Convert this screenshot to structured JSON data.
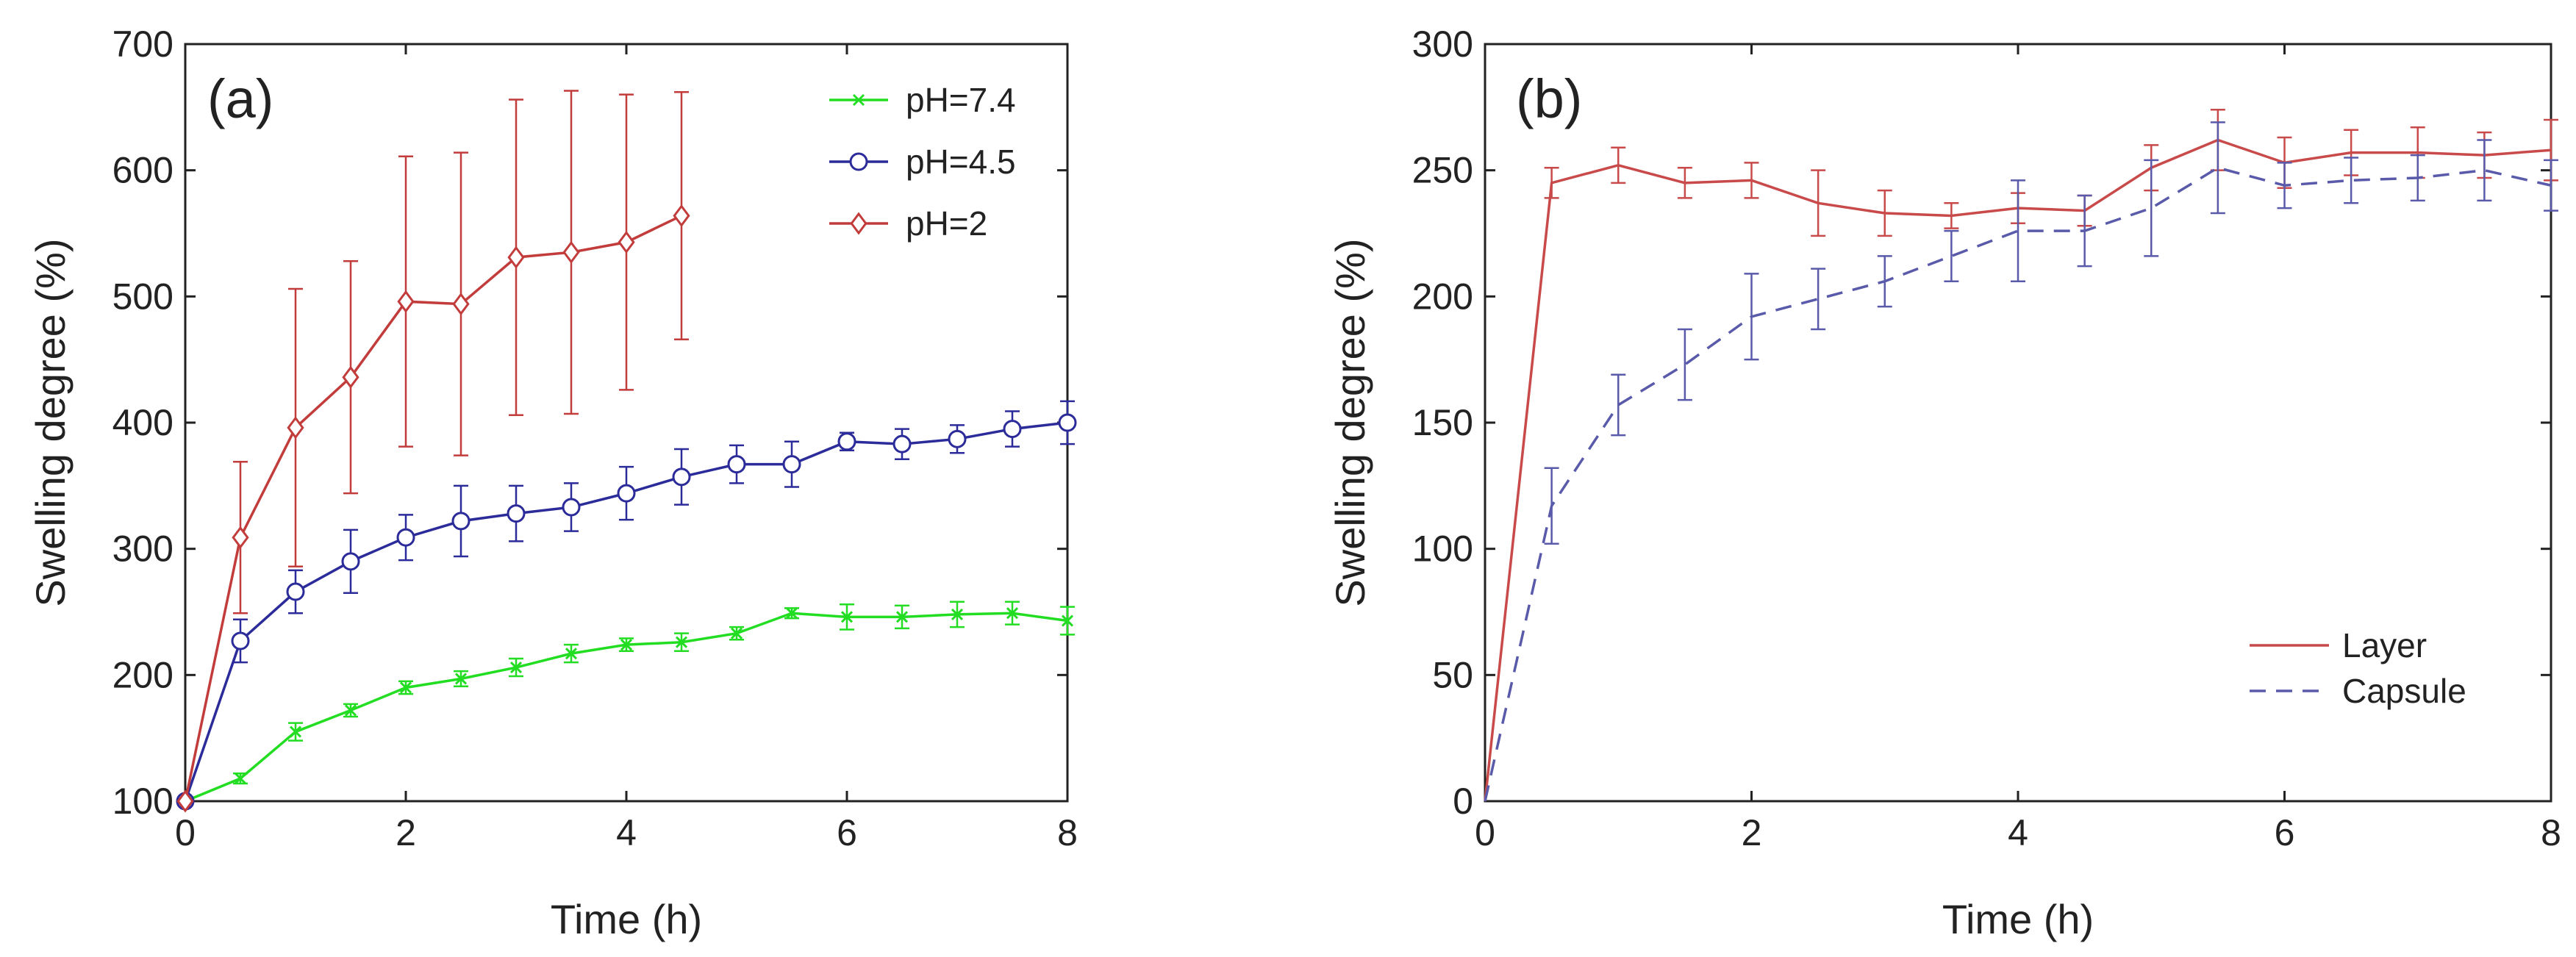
{
  "chart_data": [
    {
      "panel": "(a)",
      "type": "line",
      "xlabel": "Time (h)",
      "ylabel": "Swelling degree (%)",
      "xlim": [
        0,
        8
      ],
      "ylim": [
        100,
        700
      ],
      "xticks": [
        0,
        2,
        4,
        6,
        8
      ],
      "yticks": [
        100,
        200,
        300,
        400,
        500,
        600,
        700
      ],
      "grid": false,
      "legend_position": "top-right",
      "series": [
        {
          "name": "pH=7.4",
          "color": "#22dd22",
          "marker": "x",
          "dash": "solid",
          "x": [
            0,
            0.5,
            1,
            1.5,
            2,
            2.5,
            3,
            3.5,
            4,
            4.5,
            5,
            5.5,
            6,
            6.5,
            7,
            7.5,
            8
          ],
          "y": [
            100,
            118,
            155,
            172,
            190,
            197,
            206,
            217,
            224,
            226,
            233,
            249,
            246,
            246,
            248,
            249,
            243
          ],
          "err": [
            0,
            4,
            7,
            5,
            5,
            6,
            7,
            7,
            5,
            7,
            5,
            4,
            10,
            9,
            10,
            9,
            11
          ]
        },
        {
          "name": "pH=4.5",
          "color": "#2b2b9a",
          "marker": "circle",
          "dash": "solid",
          "x": [
            0,
            0.5,
            1,
            1.5,
            2,
            2.5,
            3,
            3.5,
            4,
            4.5,
            5,
            5.5,
            6,
            6.5,
            7,
            7.5,
            8
          ],
          "y": [
            100,
            227,
            266,
            290,
            309,
            322,
            328,
            333,
            344,
            357,
            367,
            367,
            385,
            383,
            387,
            395,
            400
          ],
          "err": [
            0,
            17,
            17,
            25,
            18,
            28,
            22,
            19,
            21,
            22,
            15,
            18,
            7,
            12,
            11,
            14,
            17
          ]
        },
        {
          "name": "pH=2",
          "color": "#c23c3c",
          "marker": "diamond",
          "dash": "solid",
          "x": [
            0,
            0.5,
            1,
            1.5,
            2,
            2.5,
            3,
            3.5,
            4,
            4.5
          ],
          "y": [
            100,
            309,
            396,
            436,
            496,
            494,
            531,
            535,
            543,
            564
          ],
          "err": [
            0,
            60,
            110,
            92,
            115,
            120,
            125,
            128,
            117,
            98
          ]
        }
      ]
    },
    {
      "panel": "(b)",
      "type": "line",
      "xlabel": "Time (h)",
      "ylabel": "Swelling degree (%)",
      "xlim": [
        0,
        8
      ],
      "ylim": [
        0,
        300
      ],
      "xticks": [
        0,
        2,
        4,
        6,
        8
      ],
      "yticks": [
        0,
        50,
        100,
        150,
        200,
        250,
        300
      ],
      "grid": false,
      "legend_position": "bottom-right",
      "series": [
        {
          "name": "Layer",
          "color": "#c84a4a",
          "marker": "none",
          "dash": "solid",
          "x": [
            0,
            0.5,
            1,
            1.5,
            2,
            2.5,
            3,
            3.5,
            4,
            4.5,
            5,
            5.5,
            6,
            6.5,
            7,
            7.5,
            8
          ],
          "y": [
            0,
            245,
            252,
            245,
            246,
            237,
            233,
            232,
            235,
            234,
            251,
            262,
            253,
            257,
            257,
            256,
            258
          ],
          "err": [
            0,
            6,
            7,
            6,
            7,
            13,
            9,
            5,
            6,
            6,
            9,
            12,
            10,
            9,
            10,
            9,
            12
          ]
        },
        {
          "name": "Capsule",
          "color": "#5a5aaa",
          "marker": "none",
          "dash": "dashed",
          "x": [
            0,
            0.5,
            1,
            1.5,
            2,
            2.5,
            3,
            3.5,
            4,
            4.5,
            5,
            5.5,
            6,
            6.5,
            7,
            7.5,
            8
          ],
          "y": [
            0,
            117,
            157,
            173,
            192,
            199,
            206,
            216,
            226,
            226,
            235,
            251,
            244,
            246,
            247,
            250,
            244
          ],
          "err": [
            0,
            15,
            12,
            14,
            17,
            12,
            10,
            10,
            20,
            14,
            19,
            18,
            9,
            9,
            9,
            12,
            10
          ]
        }
      ]
    }
  ]
}
